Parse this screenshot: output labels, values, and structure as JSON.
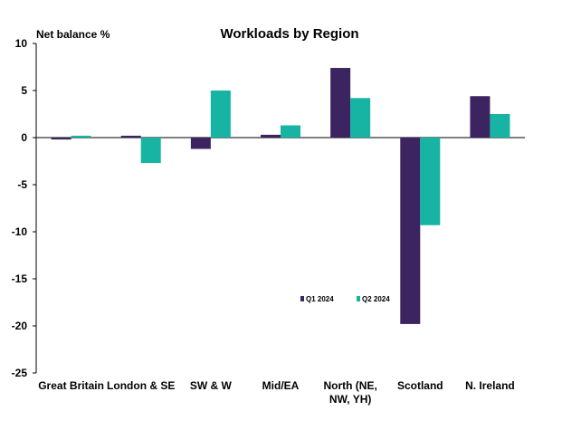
{
  "chart_data": {
    "type": "bar",
    "title": "Workloads by Region",
    "ylabel": "Net balance %",
    "xlabel": "",
    "ylim": [
      -25,
      10
    ],
    "yticks": [
      10,
      5,
      0,
      -5,
      -10,
      -15,
      -20,
      -25
    ],
    "categories": [
      "Great Britain",
      "London & SE",
      "SW & W",
      "Mid/EA",
      "North (NE, NW, YH)",
      "Scotland",
      "N. Ireland"
    ],
    "category_lines": [
      [
        "Great Britain"
      ],
      [
        "London & SE"
      ],
      [
        "SW & W"
      ],
      [
        "Mid/EA"
      ],
      [
        "North (NE,",
        "NW, YH)"
      ],
      [
        "Scotland"
      ],
      [
        "N. Ireland"
      ]
    ],
    "series": [
      {
        "name": "Q1 2024",
        "color": "#3b2460",
        "values": [
          -0.2,
          0.2,
          -1.2,
          0.3,
          7.4,
          -19.8,
          4.4
        ]
      },
      {
        "name": "Q2 2024",
        "color": "#17b3a3",
        "values": [
          0.2,
          -2.7,
          5.0,
          1.3,
          4.2,
          -9.3,
          2.5
        ]
      }
    ],
    "legend_position": "center-right",
    "grid": false
  }
}
